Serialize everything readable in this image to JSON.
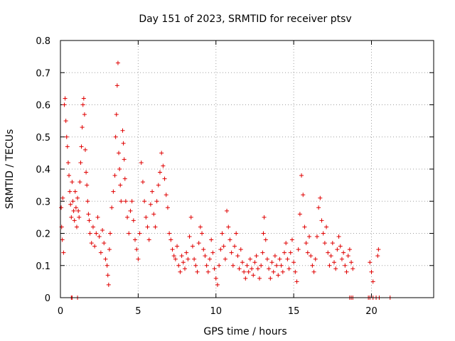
{
  "chart_data": {
    "type": "scatter",
    "title": "Day 151 of 2023, SRMTID for receiver ptsv",
    "xlabel": "GPS time / hours",
    "ylabel": "SRMTID / TECUs",
    "xlim": [
      0,
      24
    ],
    "ylim": [
      0,
      0.8
    ],
    "x_ticks": [
      0,
      5,
      10,
      15,
      20
    ],
    "y_ticks": [
      0,
      0.1,
      0.2,
      0.3,
      0.4,
      0.5,
      0.6,
      0.7,
      0.8
    ],
    "x_tick_labels": [
      "0",
      "5",
      "10",
      "15",
      "20"
    ],
    "y_tick_labels": [
      "0",
      "0.1",
      "0.2",
      "0.3",
      "0.4",
      "0.5",
      "0.6",
      "0.7",
      "0.8"
    ],
    "grid": true,
    "marker": "+",
    "color": "#e00000",
    "series": [
      {
        "name": "SRMTID",
        "points": [
          [
            0.05,
            0.28
          ],
          [
            0.08,
            0.22
          ],
          [
            0.12,
            0.18
          ],
          [
            0.15,
            0.31
          ],
          [
            0.2,
            0.14
          ],
          [
            0.25,
            0.6
          ],
          [
            0.3,
            0.62
          ],
          [
            0.35,
            0.55
          ],
          [
            0.4,
            0.5
          ],
          [
            0.45,
            0.47
          ],
          [
            0.5,
            0.42
          ],
          [
            0.55,
            0.38
          ],
          [
            0.6,
            0.33
          ],
          [
            0.65,
            0.29
          ],
          [
            0.7,
            0.25
          ],
          [
            0.75,
            0.36
          ],
          [
            0.8,
            0.3
          ],
          [
            0.85,
            0.27
          ],
          [
            0.9,
            0.24
          ],
          [
            0.95,
            0.33
          ],
          [
            1.0,
            0.28
          ],
          [
            1.05,
            0.22
          ],
          [
            1.1,
            0.31
          ],
          [
            1.15,
            0.27
          ],
          [
            1.2,
            0.25
          ],
          [
            1.25,
            0.36
          ],
          [
            1.3,
            0.42
          ],
          [
            1.35,
            0.47
          ],
          [
            1.4,
            0.53
          ],
          [
            1.45,
            0.6
          ],
          [
            1.5,
            0.62
          ],
          [
            1.55,
            0.57
          ],
          [
            1.6,
            0.46
          ],
          [
            1.65,
            0.39
          ],
          [
            1.7,
            0.35
          ],
          [
            1.75,
            0.3
          ],
          [
            1.8,
            0.26
          ],
          [
            1.85,
            0.24
          ],
          [
            1.9,
            0.2
          ],
          [
            2.0,
            0.17
          ],
          [
            2.1,
            0.22
          ],
          [
            2.2,
            0.16
          ],
          [
            2.3,
            0.2
          ],
          [
            2.4,
            0.25
          ],
          [
            2.5,
            0.19
          ],
          [
            2.6,
            0.14
          ],
          [
            2.7,
            0.21
          ],
          [
            2.8,
            0.17
          ],
          [
            2.9,
            0.12
          ],
          [
            3.0,
            0.1
          ],
          [
            3.05,
            0.07
          ],
          [
            3.1,
            0.04
          ],
          [
            3.15,
            0.15
          ],
          [
            3.2,
            0.2
          ],
          [
            3.3,
            0.28
          ],
          [
            3.4,
            0.33
          ],
          [
            3.5,
            0.38
          ],
          [
            3.55,
            0.5
          ],
          [
            3.6,
            0.57
          ],
          [
            3.65,
            0.66
          ],
          [
            3.7,
            0.73
          ],
          [
            3.75,
            0.45
          ],
          [
            3.8,
            0.4
          ],
          [
            3.85,
            0.35
          ],
          [
            3.9,
            0.3
          ],
          [
            4.0,
            0.52
          ],
          [
            4.05,
            0.48
          ],
          [
            4.1,
            0.43
          ],
          [
            4.15,
            0.37
          ],
          [
            4.2,
            0.3
          ],
          [
            4.3,
            0.25
          ],
          [
            4.4,
            0.2
          ],
          [
            4.5,
            0.27
          ],
          [
            4.6,
            0.3
          ],
          [
            4.7,
            0.24
          ],
          [
            4.8,
            0.18
          ],
          [
            4.9,
            0.15
          ],
          [
            5.0,
            0.12
          ],
          [
            5.1,
            0.2
          ],
          [
            5.2,
            0.42
          ],
          [
            5.3,
            0.36
          ],
          [
            5.4,
            0.3
          ],
          [
            5.5,
            0.25
          ],
          [
            5.6,
            0.22
          ],
          [
            5.7,
            0.18
          ],
          [
            5.8,
            0.29
          ],
          [
            5.9,
            0.33
          ],
          [
            6.0,
            0.26
          ],
          [
            6.1,
            0.22
          ],
          [
            6.2,
            0.3
          ],
          [
            6.3,
            0.35
          ],
          [
            6.4,
            0.39
          ],
          [
            6.5,
            0.45
          ],
          [
            6.6,
            0.41
          ],
          [
            6.7,
            0.37
          ],
          [
            6.8,
            0.32
          ],
          [
            6.9,
            0.28
          ],
          [
            7.0,
            0.2
          ],
          [
            7.1,
            0.18
          ],
          [
            7.2,
            0.15
          ],
          [
            7.3,
            0.13
          ],
          [
            7.4,
            0.12
          ],
          [
            7.5,
            0.16
          ],
          [
            7.6,
            0.1
          ],
          [
            7.7,
            0.08
          ],
          [
            7.8,
            0.13
          ],
          [
            7.9,
            0.11
          ],
          [
            8.0,
            0.09
          ],
          [
            8.1,
            0.14
          ],
          [
            8.2,
            0.12
          ],
          [
            8.3,
            0.19
          ],
          [
            8.4,
            0.25
          ],
          [
            8.5,
            0.16
          ],
          [
            8.6,
            0.12
          ],
          [
            8.7,
            0.1
          ],
          [
            8.8,
            0.08
          ],
          [
            8.9,
            0.17
          ],
          [
            9.0,
            0.22
          ],
          [
            9.1,
            0.2
          ],
          [
            9.2,
            0.15
          ],
          [
            9.3,
            0.13
          ],
          [
            9.4,
            0.1
          ],
          [
            9.5,
            0.08
          ],
          [
            9.6,
            0.12
          ],
          [
            9.7,
            0.18
          ],
          [
            9.8,
            0.14
          ],
          [
            9.9,
            0.09
          ],
          [
            10.0,
            0.06
          ],
          [
            10.1,
            0.04
          ],
          [
            10.2,
            0.1
          ],
          [
            10.3,
            0.15
          ],
          [
            10.4,
            0.2
          ],
          [
            10.5,
            0.16
          ],
          [
            10.6,
            0.12
          ],
          [
            10.7,
            0.27
          ],
          [
            10.8,
            0.22
          ],
          [
            10.9,
            0.18
          ],
          [
            11.0,
            0.14
          ],
          [
            11.1,
            0.1
          ],
          [
            11.2,
            0.16
          ],
          [
            11.3,
            0.2
          ],
          [
            11.4,
            0.13
          ],
          [
            11.5,
            0.09
          ],
          [
            11.6,
            0.15
          ],
          [
            11.7,
            0.11
          ],
          [
            11.8,
            0.08
          ],
          [
            11.9,
            0.06
          ],
          [
            12.0,
            0.1
          ],
          [
            12.1,
            0.08
          ],
          [
            12.2,
            0.12
          ],
          [
            12.3,
            0.09
          ],
          [
            12.4,
            0.07
          ],
          [
            12.5,
            0.11
          ],
          [
            12.6,
            0.13
          ],
          [
            12.7,
            0.09
          ],
          [
            12.8,
            0.06
          ],
          [
            12.9,
            0.1
          ],
          [
            13.0,
            0.14
          ],
          [
            13.05,
            0.2
          ],
          [
            13.1,
            0.25
          ],
          [
            13.2,
            0.18
          ],
          [
            13.3,
            0.12
          ],
          [
            13.4,
            0.09
          ],
          [
            13.5,
            0.06
          ],
          [
            13.6,
            0.11
          ],
          [
            13.7,
            0.08
          ],
          [
            13.8,
            0.13
          ],
          [
            13.9,
            0.1
          ],
          [
            14.0,
            0.07
          ],
          [
            14.1,
            0.12
          ],
          [
            14.2,
            0.1
          ],
          [
            14.3,
            0.08
          ],
          [
            14.4,
            0.14
          ],
          [
            14.5,
            0.17
          ],
          [
            14.6,
            0.12
          ],
          [
            14.7,
            0.09
          ],
          [
            14.8,
            0.14
          ],
          [
            14.9,
            0.18
          ],
          [
            15.0,
            0.11
          ],
          [
            15.1,
            0.08
          ],
          [
            15.2,
            0.05
          ],
          [
            15.3,
            0.15
          ],
          [
            15.4,
            0.26
          ],
          [
            15.5,
            0.38
          ],
          [
            15.6,
            0.32
          ],
          [
            15.7,
            0.22
          ],
          [
            15.8,
            0.17
          ],
          [
            15.9,
            0.14
          ],
          [
            16.0,
            0.19
          ],
          [
            16.1,
            0.13
          ],
          [
            16.2,
            0.1
          ],
          [
            16.3,
            0.08
          ],
          [
            16.4,
            0.12
          ],
          [
            16.5,
            0.19
          ],
          [
            16.6,
            0.28
          ],
          [
            16.7,
            0.31
          ],
          [
            16.8,
            0.24
          ],
          [
            16.9,
            0.2
          ],
          [
            17.0,
            0.17
          ],
          [
            17.1,
            0.22
          ],
          [
            17.2,
            0.14
          ],
          [
            17.3,
            0.1
          ],
          [
            17.4,
            0.13
          ],
          [
            17.5,
            0.17
          ],
          [
            17.6,
            0.11
          ],
          [
            17.7,
            0.09
          ],
          [
            17.8,
            0.15
          ],
          [
            17.9,
            0.19
          ],
          [
            18.0,
            0.16
          ],
          [
            18.1,
            0.12
          ],
          [
            18.2,
            0.14
          ],
          [
            18.3,
            0.1
          ],
          [
            18.4,
            0.08
          ],
          [
            18.5,
            0.13
          ],
          [
            18.6,
            0.15
          ],
          [
            18.7,
            0.11
          ],
          [
            18.8,
            0.09
          ],
          [
            19.9,
            0.11
          ],
          [
            20.0,
            0.08
          ],
          [
            20.1,
            0.05
          ],
          [
            20.4,
            0.13
          ],
          [
            20.45,
            0.15
          ],
          [
            0.7,
            0
          ],
          [
            0.75,
            0
          ],
          [
            1.1,
            0
          ],
          [
            18.6,
            0
          ],
          [
            18.7,
            0
          ],
          [
            18.8,
            0
          ],
          [
            19.8,
            0
          ],
          [
            19.9,
            0
          ],
          [
            20.1,
            0
          ],
          [
            20.3,
            0
          ],
          [
            20.5,
            0
          ],
          [
            21.2,
            0
          ]
        ]
      }
    ]
  }
}
